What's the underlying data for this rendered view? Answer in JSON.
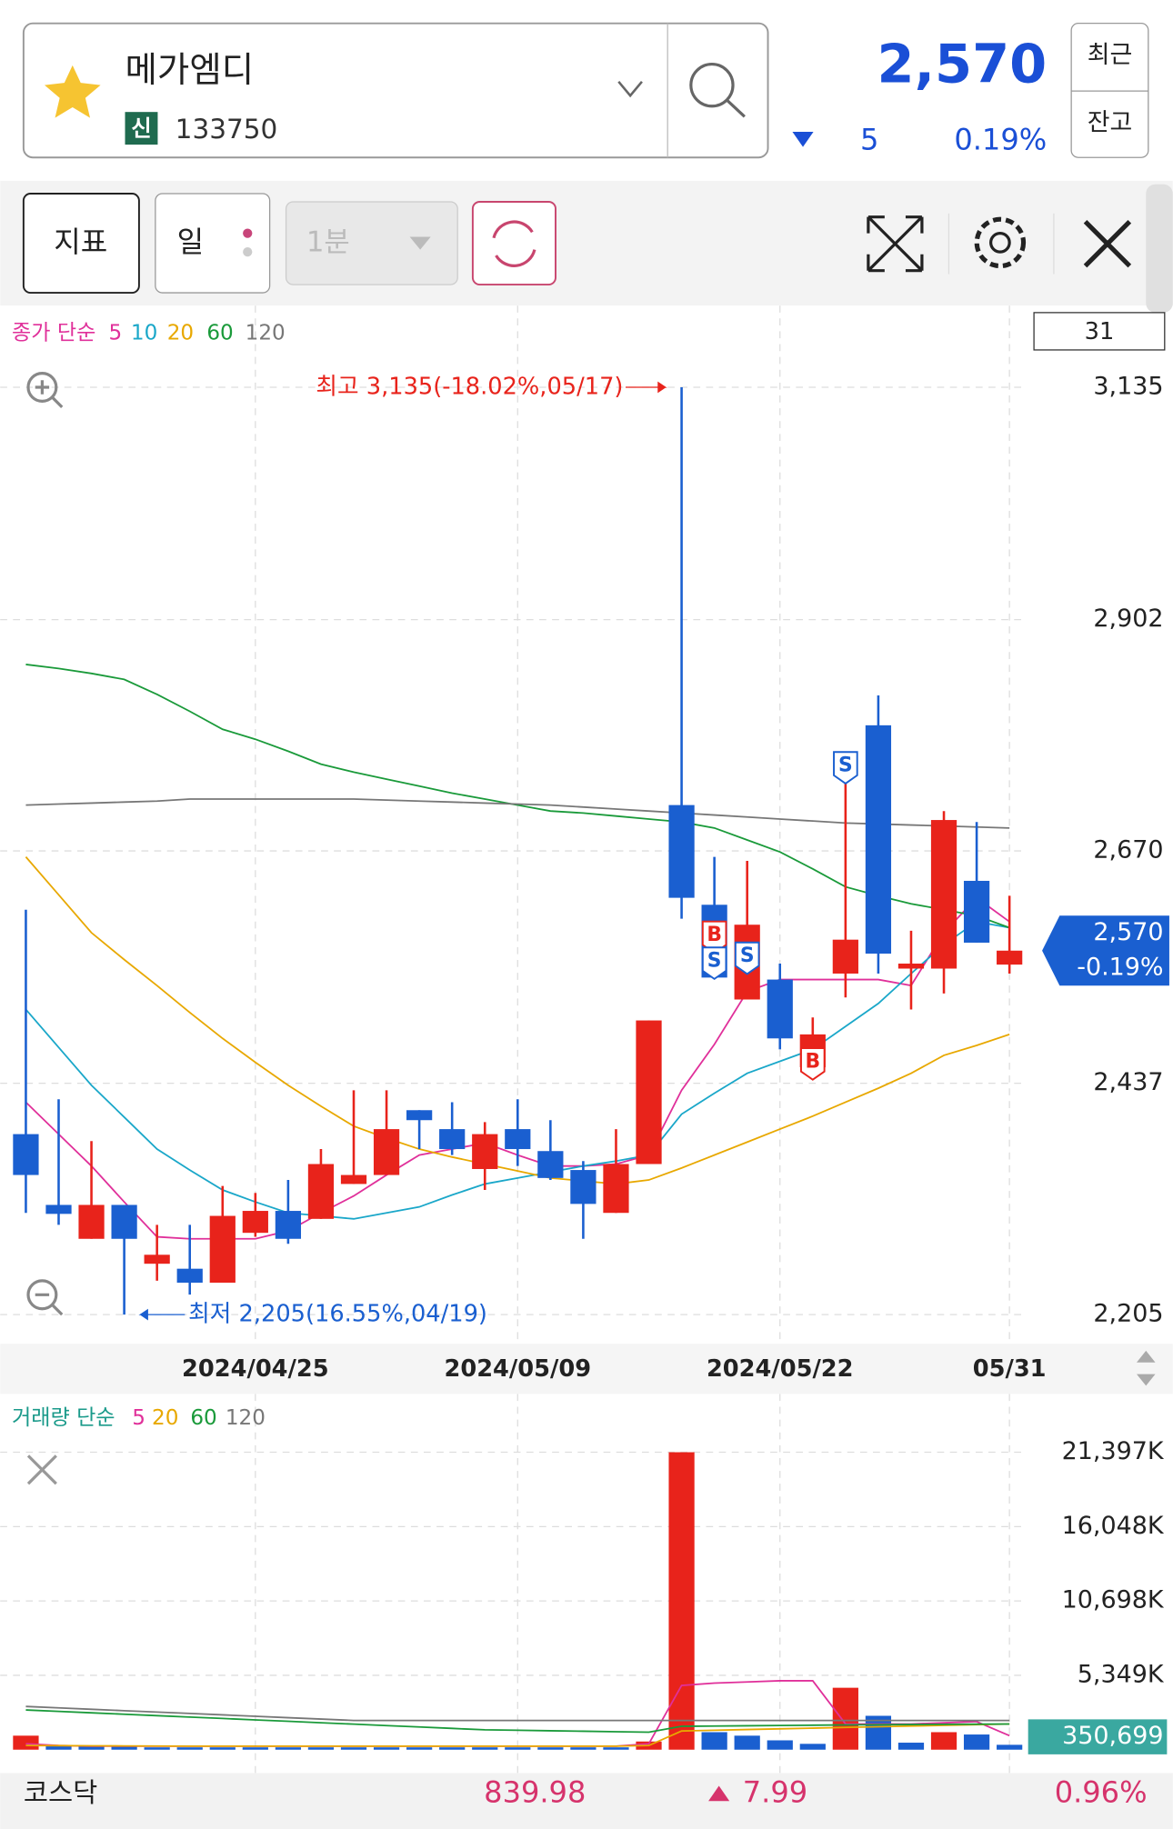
{
  "header": {
    "name": "메가엠디",
    "badge": "신",
    "code": "133750",
    "price": "2,570",
    "change": "5",
    "change_rate": "0.19%",
    "buttons": [
      "최근",
      "잔고"
    ]
  },
  "toolbar": {
    "buttons": [
      "지표",
      "일",
      "1분"
    ]
  },
  "chart_data": [
    {
      "type": "candlestick",
      "legend_title": "종가 단순",
      "visible_count": 31,
      "categories": [
        null,
        null,
        null,
        null,
        null,
        null,
        null,
        "2024/04/25",
        null,
        null,
        null,
        null,
        null,
        null,
        null,
        "2024/05/09",
        null,
        null,
        null,
        null,
        null,
        null,
        null,
        "2024/05/22",
        null,
        null,
        null,
        null,
        null,
        null,
        "05/31"
      ],
      "open": [
        2386,
        2315,
        2281,
        2315,
        2256,
        2251,
        2237,
        2287,
        2309,
        2301,
        2336,
        2345,
        2410,
        2391,
        2351,
        2391,
        2369,
        2350,
        2307,
        2356,
        2716,
        2616,
        2521,
        2541,
        2453,
        2547,
        2796,
        2552,
        2552,
        2640,
        2556
      ],
      "high": [
        2611,
        2421,
        2379,
        2315,
        2295,
        2295,
        2334,
        2327,
        2340,
        2371,
        2430,
        2430,
        2410,
        2418,
        2398,
        2421,
        2400,
        2359,
        2391,
        2500,
        3135,
        2664,
        2660,
        2557,
        2503,
        2757,
        2826,
        2590,
        2710,
        2699,
        2625
      ],
      "low": [
        2307,
        2295,
        2281,
        2205,
        2239,
        2225,
        2237,
        2283,
        2276,
        2301,
        2336,
        2345,
        2371,
        2365,
        2330,
        2354,
        2340,
        2281,
        2307,
        2356,
        2602,
        2543,
        2521,
        2471,
        2441,
        2523,
        2547,
        2511,
        2527,
        2578,
        2547
      ],
      "close": [
        2345,
        2306,
        2315,
        2281,
        2265,
        2237,
        2304,
        2309,
        2281,
        2356,
        2345,
        2391,
        2400,
        2371,
        2386,
        2371,
        2342,
        2316,
        2356,
        2500,
        2623,
        2543,
        2596,
        2482,
        2486,
        2581,
        2567,
        2557,
        2701,
        2578,
        2570
      ],
      "up_color": "#e8231b",
      "down_color": "#1a5fd0",
      "series": [
        {
          "name": "5",
          "color": "#e0309a",
          "values": [
            2418,
            2386,
            2354,
            2318,
            2283,
            2281,
            2281,
            2281,
            2289,
            2307,
            2324,
            2345,
            2365,
            2371,
            2377,
            2365,
            2354,
            2354,
            2356,
            2365,
            2430,
            2476,
            2529,
            2541,
            2541,
            2541,
            2541,
            2535,
            2588,
            2623,
            2599
          ]
        },
        {
          "name": "10",
          "color": "#1aa7c9",
          "values": [
            2511,
            2473,
            2435,
            2403,
            2371,
            2350,
            2330,
            2318,
            2307,
            2304,
            2301,
            2307,
            2313,
            2325,
            2336,
            2342,
            2348,
            2354,
            2359,
            2365,
            2406,
            2427,
            2447,
            2459,
            2471,
            2494,
            2517,
            2547,
            2576,
            2599,
            2593
          ]
        },
        {
          "name": "20",
          "color": "#e8a800",
          "values": [
            2664,
            2626,
            2588,
            2561,
            2535,
            2508,
            2482,
            2458,
            2435,
            2414,
            2394,
            2382,
            2371,
            2363,
            2356,
            2349,
            2342,
            2339,
            2336,
            2340,
            2352,
            2365,
            2378,
            2391,
            2404,
            2418,
            2432,
            2447,
            2465,
            2475,
            2486
          ]
        },
        {
          "name": "60",
          "color": "#1a9a3a",
          "values": [
            2857,
            2853,
            2848,
            2842,
            2827,
            2810,
            2792,
            2782,
            2770,
            2757,
            2749,
            2742,
            2735,
            2728,
            2722,
            2716,
            2710,
            2708,
            2705,
            2702,
            2699,
            2693,
            2681,
            2669,
            2652,
            2634,
            2625,
            2617,
            2611,
            2605,
            2593
          ]
        },
        {
          "name": "120",
          "color": "#777777",
          "values": [
            2716,
            2717,
            2718,
            2719,
            2720,
            2722,
            2722,
            2722,
            2722,
            2722,
            2722,
            2721,
            2720,
            2719,
            2718,
            2717,
            2716,
            2714,
            2712,
            2710,
            2708,
            2706,
            2704,
            2702,
            2700,
            2698,
            2697,
            2696,
            2695,
            2694,
            2693
          ]
        }
      ],
      "ylim": [
        2205,
        3135
      ],
      "yticks": [
        {
          "value": 2205,
          "label": "2,205"
        },
        {
          "value": 2437,
          "label": "2,437"
        },
        {
          "value": 2670,
          "label": "2,670"
        },
        {
          "value": 2902,
          "label": "2,902"
        },
        {
          "value": 3135,
          "label": "3,135"
        }
      ],
      "grid": true,
      "high_annotation": "최고 3,135(-18.02%,05/17)",
      "low_annotation": "최저 2,205(16.55%,04/19)",
      "current_price": {
        "value": 2570,
        "label": "2,570"
      },
      "current_change": "-0.19%",
      "signals": [
        {
          "label": "S",
          "index": 25,
          "value": 2754
        },
        {
          "label": "B",
          "index": 21,
          "value": 2584
        },
        {
          "label": "S",
          "index": 21,
          "value": 2558
        },
        {
          "label": "S",
          "index": 22,
          "value": 2563
        },
        {
          "label": "B",
          "index": 24,
          "value": 2457
        }
      ]
    },
    {
      "type": "bar",
      "legend_title": "거래량 단순",
      "values": [
        1008,
        252,
        252,
        252,
        168,
        168,
        168,
        168,
        168,
        168,
        168,
        168,
        168,
        168,
        168,
        168,
        168,
        168,
        168,
        588,
        21397,
        1260,
        1008,
        672,
        420,
        4454,
        2437,
        504,
        1260,
        1092,
        350.699
      ],
      "up_color": "#e8231b",
      "down_color": "#1a5fd0",
      "series": [
        {
          "name": "5",
          "color": "#e0309a",
          "values": [
            420,
            300,
            252,
            252,
            252,
            252,
            252,
            252,
            252,
            252,
            252,
            252,
            252,
            252,
            252,
            252,
            252,
            252,
            252,
            420,
            4622,
            4790,
            4874,
            4958,
            4958,
            1849,
            1849,
            1849,
            1933,
            2017,
            1008
          ]
        },
        {
          "name": "20",
          "color": "#e8a800",
          "values": [
            300,
            290,
            280,
            270,
            260,
            252,
            252,
            252,
            252,
            252,
            252,
            252,
            252,
            252,
            252,
            252,
            252,
            252,
            252,
            300,
            1345,
            1400,
            1450,
            1500,
            1550,
            1600,
            1650,
            1700,
            1750,
            1800,
            1849
          ]
        },
        {
          "name": "60",
          "color": "#1a9a3a",
          "values": [
            2857,
            2755,
            2653,
            2551,
            2449,
            2347,
            2245,
            2143,
            2041,
            1939,
            1837,
            1735,
            1633,
            1531,
            1429,
            1395,
            1361,
            1327,
            1293,
            1260,
            1681,
            1700,
            1720,
            1740,
            1760,
            1780,
            1800,
            1810,
            1820,
            1835,
            1849
          ]
        },
        {
          "name": "120",
          "color": "#777777",
          "values": [
            3109,
            3008,
            2907,
            2806,
            2706,
            2605,
            2504,
            2403,
            2302,
            2202,
            2101,
            2101,
            2101,
            2101,
            2101,
            2101,
            2101,
            2101,
            2101,
            2101,
            2101,
            2101,
            2101,
            2101,
            2101,
            2101,
            2101,
            2101,
            2101,
            2101,
            2101
          ]
        }
      ],
      "ylim": [
        0,
        21397
      ],
      "yticks": [
        {
          "value": 5349,
          "label": "5,349K"
        },
        {
          "value": 10698,
          "label": "10,698K"
        },
        {
          "value": 16048,
          "label": "16,048K"
        },
        {
          "value": 21397,
          "label": "21,397K"
        }
      ],
      "grid": true,
      "current_label": "350,699"
    }
  ],
  "footer": {
    "index": "코스닥",
    "value": "839.98",
    "change": "7.99",
    "rate": "0.96%"
  }
}
